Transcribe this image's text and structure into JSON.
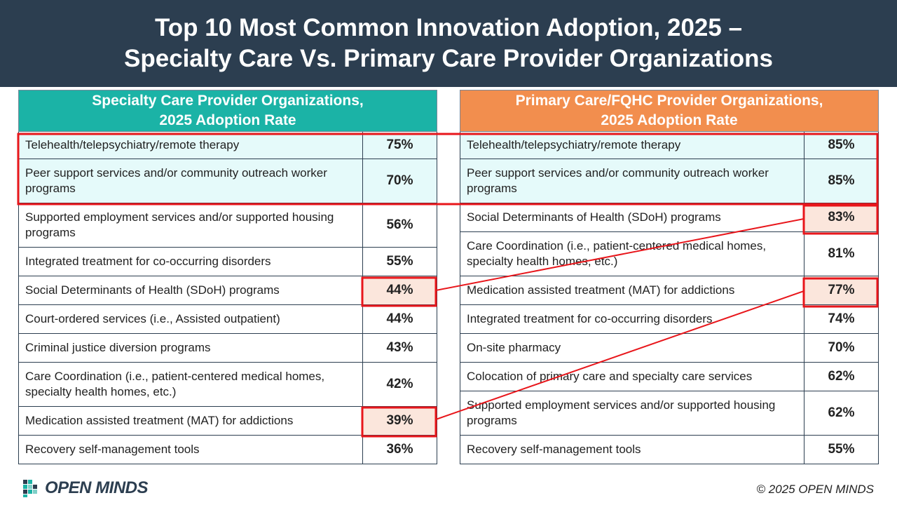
{
  "title": {
    "line1": "Top 10 Most Common Innovation Adoption, 2025 –",
    "line2": "Specialty Care Vs. Primary Care Provider Organizations"
  },
  "left_table": {
    "header_line1": "Specialty Care Provider Organizations,",
    "header_line2": "2025 Adoption Rate",
    "header_color": "#1bb3a6",
    "rows": [
      {
        "label": "Telehealth/telepsychiatry/remote therapy",
        "value": "75%"
      },
      {
        "label": "Peer support services and/or community outreach worker programs",
        "value": "70%"
      },
      {
        "label": "Supported employment services and/or supported housing programs",
        "value": "56%"
      },
      {
        "label": "Integrated treatment for co-occurring disorders",
        "value": "55%"
      },
      {
        "label": "Social Determinants of Health (SDoH) programs",
        "value": "44%"
      },
      {
        "label": "Court-ordered services (i.e., Assisted outpatient)",
        "value": "44%"
      },
      {
        "label": "Criminal justice diversion programs",
        "value": "43%"
      },
      {
        "label": "Care Coordination (i.e., patient-centered medical homes, specialty health homes, etc.)",
        "value": "42%"
      },
      {
        "label": "Medication assisted treatment (MAT) for addictions",
        "value": "39%"
      },
      {
        "label": "Recovery self-management tools",
        "value": "36%"
      }
    ]
  },
  "right_table": {
    "header_line1": "Primary Care/FQHC Provider Organizations,",
    "header_line2": "2025 Adoption Rate",
    "header_color": "#f28e4e",
    "rows": [
      {
        "label": "Telehealth/telepsychiatry/remote therapy",
        "value": "85%"
      },
      {
        "label": "Peer support services and/or community outreach worker programs",
        "value": "85%"
      },
      {
        "label": "Social Determinants of Health (SDoH) programs",
        "value": "83%"
      },
      {
        "label": "Care Coordination (i.e., patient-centered medical homes, specialty health homes, etc.)",
        "value": "81%"
      },
      {
        "label": "Medication assisted treatment (MAT) for addictions",
        "value": "77%"
      },
      {
        "label": "Integrated treatment for co-occurring disorders",
        "value": "74%"
      },
      {
        "label": "On-site pharmacy",
        "value": "70%"
      },
      {
        "label": "Colocation of primary care and specialty care services",
        "value": "62%"
      },
      {
        "label": "Supported employment services and/or supported housing programs",
        "value": "62%"
      },
      {
        "label": "Recovery self-management tools",
        "value": "55%"
      }
    ]
  },
  "highlight_color": "#e8161b",
  "footer": {
    "logo_text": "OPEN MINDS",
    "logo_icon": "open-minds-logo-icon",
    "copyright": "© 2025 OPEN MINDS"
  }
}
